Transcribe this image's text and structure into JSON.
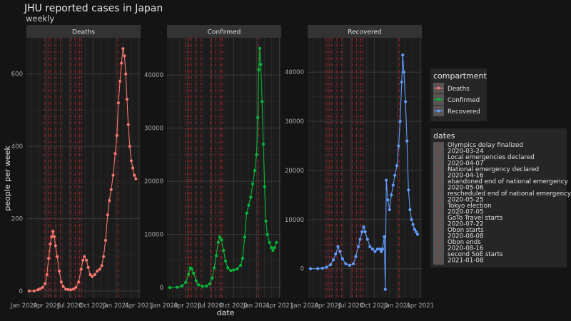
{
  "chart_data": {
    "type": "line",
    "title": "JHU reported cases in Japan",
    "subtitle": "weekly",
    "xlabel": "date",
    "ylabel": "people per week",
    "x_ticks": [
      "Jan 2020",
      "Apr 2020",
      "Jul 2020",
      "Oct 2020",
      "Jan 2021",
      "Apr 2021"
    ],
    "x_range": [
      "2020-01-22",
      "2021-03-22"
    ],
    "grid": true,
    "facets": [
      {
        "name": "Deaths",
        "color": "#f8766d",
        "ylim": [
          -20,
          700
        ],
        "y_ticks": [
          0,
          200,
          400,
          600
        ],
        "points": [
          [
            "2020-01-22",
            0
          ],
          [
            "2020-02-10",
            0
          ],
          [
            "2020-02-25",
            3
          ],
          [
            "2020-03-05",
            6
          ],
          [
            "2020-03-15",
            10
          ],
          [
            "2020-03-25",
            20
          ],
          [
            "2020-04-01",
            45
          ],
          [
            "2020-04-08",
            90
          ],
          [
            "2020-04-15",
            130
          ],
          [
            "2020-04-20",
            150
          ],
          [
            "2020-04-25",
            165
          ],
          [
            "2020-04-30",
            150
          ],
          [
            "2020-05-05",
            125
          ],
          [
            "2020-05-12",
            95
          ],
          [
            "2020-05-20",
            55
          ],
          [
            "2020-05-28",
            25
          ],
          [
            "2020-06-05",
            12
          ],
          [
            "2020-06-15",
            5
          ],
          [
            "2020-06-25",
            4
          ],
          [
            "2020-07-05",
            3
          ],
          [
            "2020-07-15",
            5
          ],
          [
            "2020-07-25",
            10
          ],
          [
            "2020-08-05",
            25
          ],
          [
            "2020-08-15",
            60
          ],
          [
            "2020-08-22",
            85
          ],
          [
            "2020-08-28",
            95
          ],
          [
            "2020-09-05",
            85
          ],
          [
            "2020-09-12",
            65
          ],
          [
            "2020-09-20",
            45
          ],
          [
            "2020-09-28",
            40
          ],
          [
            "2020-10-08",
            45
          ],
          [
            "2020-10-18",
            55
          ],
          [
            "2020-10-28",
            60
          ],
          [
            "2020-11-05",
            70
          ],
          [
            "2020-11-12",
            95
          ],
          [
            "2020-11-20",
            140
          ],
          [
            "2020-11-28",
            210
          ],
          [
            "2020-12-05",
            250
          ],
          [
            "2020-12-12",
            280
          ],
          [
            "2020-12-20",
            320
          ],
          [
            "2020-12-28",
            380
          ],
          [
            "2021-01-04",
            430
          ],
          [
            "2021-01-10",
            520
          ],
          [
            "2021-01-16",
            580
          ],
          [
            "2021-01-22",
            630
          ],
          [
            "2021-01-28",
            670
          ],
          [
            "2021-02-03",
            650
          ],
          [
            "2021-02-08",
            600
          ],
          [
            "2021-02-13",
            530
          ],
          [
            "2021-02-18",
            460
          ],
          [
            "2021-02-24",
            400
          ],
          [
            "2021-03-02",
            360
          ],
          [
            "2021-03-08",
            340
          ],
          [
            "2021-03-14",
            320
          ],
          [
            "2021-03-20",
            310
          ]
        ]
      },
      {
        "name": "Confirmed",
        "color": "#00ba38",
        "ylim": [
          -2000,
          47000
        ],
        "y_ticks": [
          0,
          10000,
          20000,
          30000,
          40000
        ],
        "points": [
          [
            "2020-01-22",
            0
          ],
          [
            "2020-02-20",
            50
          ],
          [
            "2020-03-10",
            300
          ],
          [
            "2020-03-25",
            1000
          ],
          [
            "2020-04-05",
            2500
          ],
          [
            "2020-04-12",
            3700
          ],
          [
            "2020-04-18",
            3500
          ],
          [
            "2020-04-25",
            2700
          ],
          [
            "2020-05-05",
            1300
          ],
          [
            "2020-05-15",
            500
          ],
          [
            "2020-05-30",
            250
          ],
          [
            "2020-06-15",
            300
          ],
          [
            "2020-06-28",
            700
          ],
          [
            "2020-07-08",
            1800
          ],
          [
            "2020-07-16",
            3700
          ],
          [
            "2020-07-24",
            6000
          ],
          [
            "2020-08-01",
            8500
          ],
          [
            "2020-08-07",
            9500
          ],
          [
            "2020-08-14",
            9000
          ],
          [
            "2020-08-22",
            7000
          ],
          [
            "2020-08-30",
            5000
          ],
          [
            "2020-09-08",
            3700
          ],
          [
            "2020-09-20",
            3200
          ],
          [
            "2020-10-01",
            3300
          ],
          [
            "2020-10-15",
            3500
          ],
          [
            "2020-10-29",
            4200
          ],
          [
            "2020-11-06",
            5500
          ],
          [
            "2020-11-14",
            9500
          ],
          [
            "2020-11-22",
            14000
          ],
          [
            "2020-11-30",
            15500
          ],
          [
            "2020-12-08",
            17000
          ],
          [
            "2020-12-16",
            19500
          ],
          [
            "2020-12-24",
            22000
          ],
          [
            "2020-12-31",
            25000
          ],
          [
            "2021-01-05",
            32000
          ],
          [
            "2021-01-09",
            41000
          ],
          [
            "2021-01-13",
            45000
          ],
          [
            "2021-01-17",
            42000
          ],
          [
            "2021-01-22",
            35000
          ],
          [
            "2021-01-27",
            27000
          ],
          [
            "2021-02-01",
            19000
          ],
          [
            "2021-02-06",
            12500
          ],
          [
            "2021-02-12",
            10000
          ],
          [
            "2021-02-20",
            8500
          ],
          [
            "2021-02-28",
            7500
          ],
          [
            "2021-03-06",
            7000
          ],
          [
            "2021-03-12",
            7500
          ],
          [
            "2021-03-20",
            8500
          ]
        ]
      },
      {
        "name": "Recovered",
        "color": "#619cff",
        "ylim": [
          -6000,
          47000
        ],
        "y_ticks": [
          0,
          10000,
          20000,
          30000,
          40000
        ],
        "points": [
          [
            "2020-01-22",
            0
          ],
          [
            "2020-02-20",
            10
          ],
          [
            "2020-03-10",
            100
          ],
          [
            "2020-03-25",
            300
          ],
          [
            "2020-04-10",
            800
          ],
          [
            "2020-04-22",
            1800
          ],
          [
            "2020-05-01",
            3000
          ],
          [
            "2020-05-10",
            4500
          ],
          [
            "2020-05-18",
            3500
          ],
          [
            "2020-05-28",
            2000
          ],
          [
            "2020-06-10",
            1000
          ],
          [
            "2020-06-25",
            700
          ],
          [
            "2020-07-10",
            1000
          ],
          [
            "2020-07-20",
            2500
          ],
          [
            "2020-07-30",
            4500
          ],
          [
            "2020-08-06",
            6000
          ],
          [
            "2020-08-14",
            7500
          ],
          [
            "2020-08-20",
            8500
          ],
          [
            "2020-08-26",
            7500
          ],
          [
            "2020-09-04",
            6000
          ],
          [
            "2020-09-14",
            4500
          ],
          [
            "2020-09-24",
            4000
          ],
          [
            "2020-10-04",
            3500
          ],
          [
            "2020-10-14",
            4000
          ],
          [
            "2020-10-24",
            4000
          ],
          [
            "2020-10-29",
            3500
          ],
          [
            "2020-11-03",
            4000
          ],
          [
            "2020-11-10",
            6500
          ],
          [
            "2020-11-14",
            -4200
          ],
          [
            "2020-11-18",
            18000
          ],
          [
            "2020-11-24",
            14000
          ],
          [
            "2020-12-01",
            12000
          ],
          [
            "2020-12-08",
            15000
          ],
          [
            "2020-12-15",
            17000
          ],
          [
            "2020-12-22",
            19000
          ],
          [
            "2020-12-30",
            21000
          ],
          [
            "2021-01-06",
            25000
          ],
          [
            "2021-01-12",
            30000
          ],
          [
            "2021-01-18",
            38000
          ],
          [
            "2021-01-22",
            43500
          ],
          [
            "2021-01-27",
            40000
          ],
          [
            "2021-02-02",
            34000
          ],
          [
            "2021-02-08",
            26000
          ],
          [
            "2021-02-14",
            16000
          ],
          [
            "2021-02-20",
            12000
          ],
          [
            "2021-02-26",
            10000
          ],
          [
            "2021-03-04",
            9000
          ],
          [
            "2021-03-10",
            8000
          ],
          [
            "2021-03-16",
            7500
          ],
          [
            "2021-03-22",
            7000
          ]
        ]
      }
    ],
    "event_dates": [
      "2020-03-24",
      "2020-04-07",
      "2020-04-16",
      "2020-05-06",
      "2020-05-25",
      "2020-07-05",
      "2020-07-22",
      "2020-08-08",
      "2020-08-16",
      "2021-01-08"
    ],
    "legend_compartment": {
      "title": "compartment",
      "items": [
        {
          "label": "Deaths",
          "color": "#f8766d"
        },
        {
          "label": "Confirmed",
          "color": "#00ba38"
        },
        {
          "label": "Recovered",
          "color": "#619cff"
        }
      ]
    },
    "legend_dates": {
      "title": "dates",
      "entries": [
        "Olympics delay finalized",
        "2020-03-24",
        "Local emergencies declared",
        "2020-04-07",
        "National emergency declared",
        "2020-04-16",
        "abandoned end of national emergency",
        "2020-05-06",
        "rescheduled end of national emergency",
        "2020-05-25",
        "Tokyo election",
        "2020-07-05",
        "GoTo Travel starts",
        "2020-07-22",
        "Obon starts",
        "2020-08-08",
        "Obon ends",
        "2020-08-16",
        "second SoE starts",
        "2021-01-08"
      ]
    }
  }
}
